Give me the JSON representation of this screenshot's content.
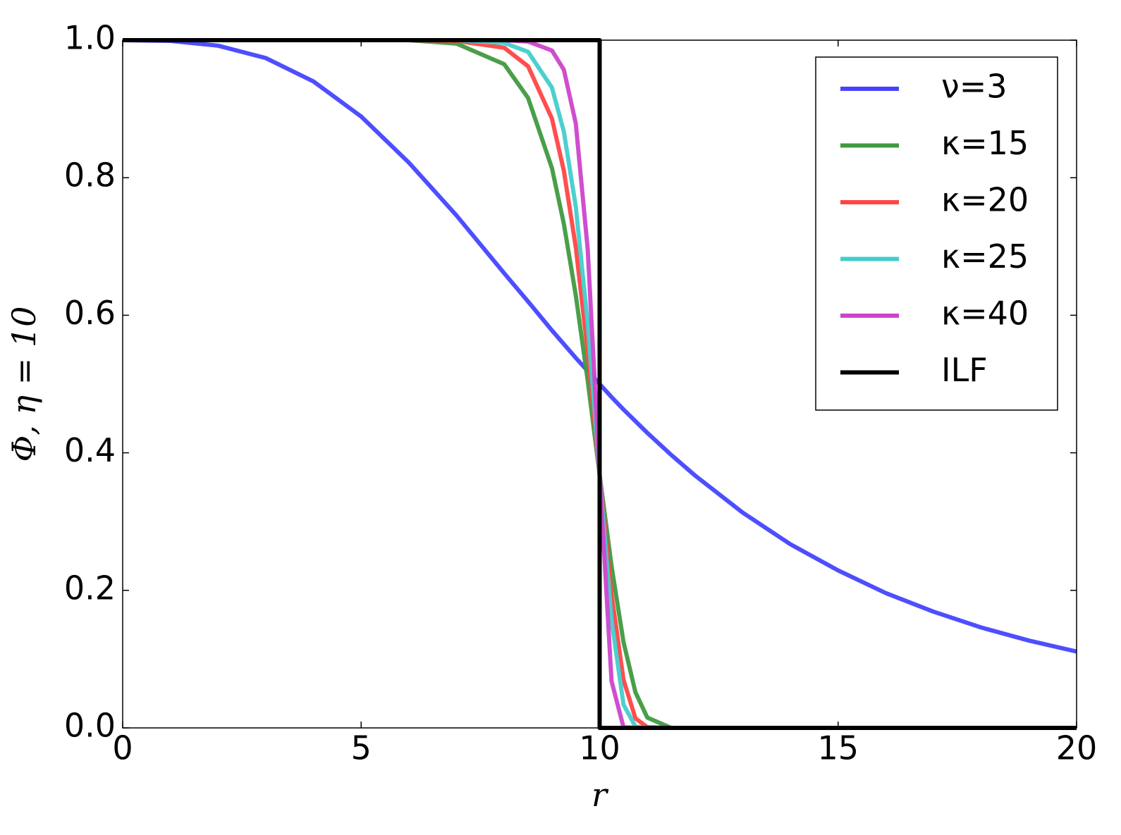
{
  "chart_data": {
    "type": "line",
    "xlabel": "r",
    "ylabel": "Φ, η = 10",
    "x": [
      0,
      1,
      2,
      3,
      4,
      5,
      6,
      7,
      8,
      8.5,
      9,
      9.25,
      9.5,
      9.75,
      10,
      10.25,
      10.5,
      10.75,
      11,
      11.5,
      12,
      13,
      14,
      15,
      16,
      17,
      18,
      19,
      20
    ],
    "series": [
      {
        "name": "ν=3",
        "color": "#4444ff",
        "values": [
          1,
          0.999,
          0.992,
          0.974,
          0.94,
          0.889,
          0.822,
          0.745,
          0.661,
          0.62,
          0.578,
          0.558,
          0.538,
          0.519,
          0.5,
          0.481,
          0.463,
          0.446,
          0.429,
          0.397,
          0.367,
          0.313,
          0.267,
          0.229,
          0.196,
          0.169,
          0.146,
          0.127,
          0.111
        ]
      },
      {
        "name": "κ=15",
        "color": "#3f9a3f",
        "values": [
          1,
          1,
          1,
          1,
          1,
          1,
          1,
          0.995,
          0.965,
          0.916,
          0.814,
          0.733,
          0.629,
          0.505,
          0.368,
          0.235,
          0.125,
          0.052,
          0.015,
          0,
          0,
          0,
          0,
          0,
          0,
          0,
          0,
          0,
          0
        ]
      },
      {
        "name": "κ=20",
        "color": "#ff4444",
        "values": [
          1,
          1,
          1,
          1,
          1,
          1,
          1,
          0.999,
          0.989,
          0.962,
          0.886,
          0.81,
          0.699,
          0.547,
          0.368,
          0.194,
          0.07,
          0.014,
          0.001,
          0,
          0,
          0,
          0,
          0,
          0,
          0,
          0,
          0,
          0
        ]
      },
      {
        "name": "κ=25",
        "color": "#44cccc",
        "values": [
          1,
          1,
          1,
          1,
          1,
          1,
          1,
          1,
          0.996,
          0.983,
          0.931,
          0.867,
          0.758,
          0.588,
          0.368,
          0.157,
          0.034,
          0.002,
          0,
          0,
          0,
          0,
          0,
          0,
          0,
          0,
          0,
          0,
          0
        ]
      },
      {
        "name": "κ=40",
        "color": "#cc44cc",
        "values": [
          1,
          1,
          1,
          1,
          1,
          1,
          1,
          1,
          1,
          0.998,
          0.985,
          0.957,
          0.879,
          0.696,
          0.368,
          0.068,
          0.001,
          0,
          0,
          0,
          0,
          0,
          0,
          0,
          0,
          0,
          0,
          0,
          0
        ]
      },
      {
        "name": "ILF",
        "color": "#000000",
        "x": [
          0,
          10,
          10,
          20
        ],
        "values": [
          1,
          1,
          0,
          0
        ]
      }
    ],
    "xlim": [
      0,
      20
    ],
    "ylim": [
      0,
      1
    ],
    "xticks": [
      0,
      5,
      10,
      15,
      20
    ],
    "yticks": [
      {
        "value": 0,
        "label": "0.0"
      },
      0.2,
      0.4,
      0.6,
      0.8,
      {
        "value": 1,
        "label": "1.0"
      }
    ],
    "legend": "upper right"
  }
}
